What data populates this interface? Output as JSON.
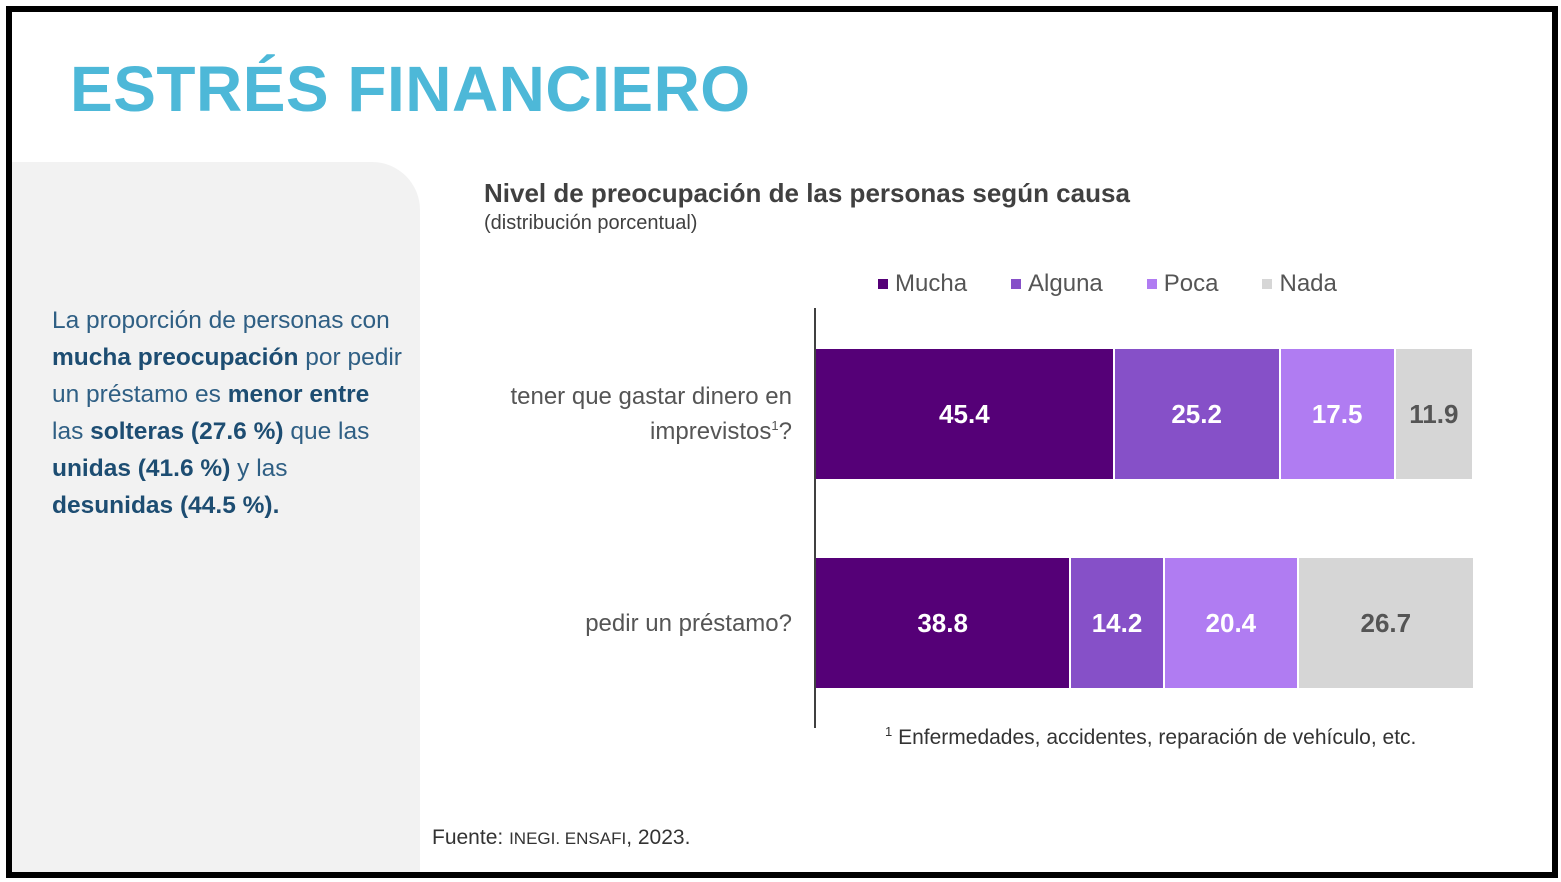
{
  "page": {
    "title": "ESTRÉS FINANCIERO",
    "side_text": {
      "t1": "La proporción de personas con ",
      "b1": "mucha preocupación",
      "t2": " por pedir un préstamo es ",
      "b2": "menor entre",
      "t3": " las ",
      "b3": "solteras (27.6 %)",
      "t4": " que las ",
      "b4": "unidas (41.6 %)",
      "t5": " y las ",
      "b5": "desunidas (44.5 %)."
    },
    "source_prefix": "Fuente: ",
    "source_org": "INEGI. ENSAFI",
    "source_year": ", 2023."
  },
  "chart_data": {
    "type": "bar",
    "orientation": "horizontal",
    "stacked": true,
    "title": "Nivel de preocupación de las personas según causa",
    "subtitle": "(distribución porcentual)",
    "categories": [
      {
        "text": "tener que gastar dinero en imprevistos",
        "sup": "1",
        "suffix": "?"
      },
      {
        "text": "pedir un préstamo?",
        "sup": "",
        "suffix": ""
      }
    ],
    "series": [
      {
        "name": "Mucha",
        "color": "#550077",
        "text_color": "#ffffff",
        "values": [
          45.4,
          38.8
        ]
      },
      {
        "name": "Alguna",
        "color": "#8650c8",
        "text_color": "#ffffff",
        "values": [
          25.2,
          14.2
        ]
      },
      {
        "name": "Poca",
        "color": "#b07cf2",
        "text_color": "#ffffff",
        "values": [
          17.5,
          20.4
        ]
      },
      {
        "name": "Nada",
        "color": "#d6d6d6",
        "text_color": "#555555",
        "values": [
          11.9,
          26.7
        ]
      }
    ],
    "legend_position": "top",
    "footnote_mark": "1",
    "footnote": "Enfermedades, accidentes, reparación de vehículo, etc."
  }
}
